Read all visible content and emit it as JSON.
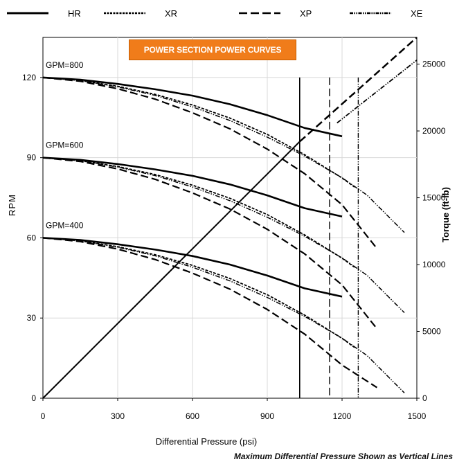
{
  "chart_data": {
    "type": "line",
    "title": "POWER SECTION POWER CURVES",
    "xlabel": "Differential Pressure (psi)",
    "ylabel": "RPM",
    "y2label": "Torque (ft-lb)",
    "footnote": "Maximum Differential Pressure Shown as Vertical Lines",
    "xlim": [
      0,
      1500
    ],
    "ylim": [
      0,
      135
    ],
    "y2lim": [
      0,
      27000
    ],
    "xticks": [
      0,
      300,
      600,
      900,
      1200,
      1500
    ],
    "yticks": [
      0,
      30,
      60,
      90,
      120
    ],
    "y2ticks": [
      0,
      5000,
      10000,
      15000,
      20000,
      25000
    ],
    "grid": true,
    "legend_position": "top",
    "legend": [
      {
        "name": "HR",
        "style": "solid"
      },
      {
        "name": "XR",
        "style": "short-dash"
      },
      {
        "name": "XP",
        "style": "long-dash"
      },
      {
        "name": "XE",
        "style": "dash-dot-dot"
      }
    ],
    "flow_labels": [
      {
        "text": "GPM=800",
        "rpm": 120
      },
      {
        "text": "GPM=600",
        "rpm": 90
      },
      {
        "text": "GPM=400",
        "rpm": 60
      }
    ],
    "rpm_series": [
      {
        "name": "HR",
        "flow": "GPM=800",
        "x": [
          0,
          150,
          300,
          450,
          600,
          750,
          900,
          1050,
          1200
        ],
        "y": [
          120,
          119.2,
          117.6,
          115.6,
          113.2,
          110,
          105.9,
          101.1,
          98
        ]
      },
      {
        "name": "HR",
        "flow": "GPM=600",
        "x": [
          0,
          150,
          300,
          450,
          600,
          750,
          900,
          1050,
          1200
        ],
        "y": [
          90,
          89.2,
          87.6,
          85.6,
          83.2,
          80,
          75.9,
          71.1,
          68
        ]
      },
      {
        "name": "HR",
        "flow": "GPM=400",
        "x": [
          0,
          150,
          300,
          450,
          600,
          750,
          900,
          1050,
          1200
        ],
        "y": [
          60,
          59.2,
          57.6,
          55.6,
          53.2,
          50,
          45.9,
          41.1,
          38
        ]
      },
      {
        "name": "XR",
        "flow": "GPM=800",
        "x": [
          0,
          150,
          300,
          450,
          600,
          750,
          900,
          1050,
          1200,
          1250
        ],
        "y": [
          120,
          118.9,
          116.7,
          113.7,
          109.7,
          104.8,
          98.7,
          91.1,
          82.4,
          79
        ]
      },
      {
        "name": "XR",
        "flow": "GPM=600",
        "x": [
          0,
          150,
          300,
          450,
          600,
          750,
          900,
          1050,
          1200,
          1250
        ],
        "y": [
          90,
          88.9,
          86.7,
          83.7,
          79.7,
          74.8,
          68.7,
          61.1,
          52.4,
          49
        ]
      },
      {
        "name": "XR",
        "flow": "GPM=400",
        "x": [
          0,
          150,
          300,
          450,
          600,
          750,
          900,
          1050,
          1200,
          1250
        ],
        "y": [
          60,
          58.9,
          56.7,
          53.7,
          49.7,
          44.8,
          38.7,
          31.1,
          22.4,
          19
        ]
      },
      {
        "name": "XP",
        "flow": "GPM=800",
        "x": [
          0,
          150,
          300,
          450,
          600,
          750,
          900,
          1050,
          1200,
          1340
        ],
        "y": [
          120,
          118.6,
          115.8,
          111.9,
          106.8,
          100.8,
          93.2,
          84,
          72.4,
          56
        ]
      },
      {
        "name": "XP",
        "flow": "GPM=600",
        "x": [
          0,
          150,
          300,
          450,
          600,
          750,
          900,
          1050,
          1200,
          1340
        ],
        "y": [
          90,
          88.6,
          85.8,
          81.9,
          76.8,
          70.8,
          63.2,
          54,
          42.4,
          26
        ]
      },
      {
        "name": "XP",
        "flow": "GPM=400",
        "x": [
          0,
          150,
          300,
          450,
          600,
          750,
          900,
          1050,
          1200,
          1340
        ],
        "y": [
          60,
          58.6,
          55.8,
          51.9,
          46.8,
          40.8,
          33.2,
          24,
          12.4,
          4
        ]
      },
      {
        "name": "XE",
        "flow": "GPM=800",
        "x": [
          0,
          150,
          300,
          450,
          600,
          750,
          900,
          1050,
          1200,
          1300,
          1450
        ],
        "y": [
          120,
          118.8,
          116.5,
          113.3,
          109,
          103.9,
          97.7,
          90.6,
          82.5,
          76,
          62
        ]
      },
      {
        "name": "XE",
        "flow": "GPM=600",
        "x": [
          0,
          150,
          300,
          450,
          600,
          750,
          900,
          1050,
          1200,
          1300,
          1450
        ],
        "y": [
          90,
          88.8,
          86.5,
          83.3,
          79,
          73.9,
          67.7,
          60.6,
          52.5,
          46,
          32
        ]
      },
      {
        "name": "XE",
        "flow": "GPM=400",
        "x": [
          0,
          150,
          300,
          450,
          600,
          750,
          900,
          1050,
          1200,
          1300,
          1450
        ],
        "y": [
          60,
          58.8,
          56.5,
          53.3,
          49,
          43.9,
          37.7,
          30.6,
          22.5,
          16,
          2
        ]
      }
    ],
    "torque_series": [
      {
        "name": "HR",
        "x": [
          0,
          1030
        ],
        "y": [
          0,
          19200
        ]
      },
      {
        "name": "XP",
        "x": [
          1030,
          1500
        ],
        "y": [
          19200,
          27000
        ]
      },
      {
        "name": "XE",
        "x": [
          1180,
          1500
        ],
        "y": [
          20600,
          25300
        ]
      }
    ],
    "max_pressure_lines": [
      {
        "name": "HR",
        "x": 1030
      },
      {
        "name": "XP",
        "x": 1150
      },
      {
        "name": "XE",
        "x": 1265
      }
    ]
  }
}
